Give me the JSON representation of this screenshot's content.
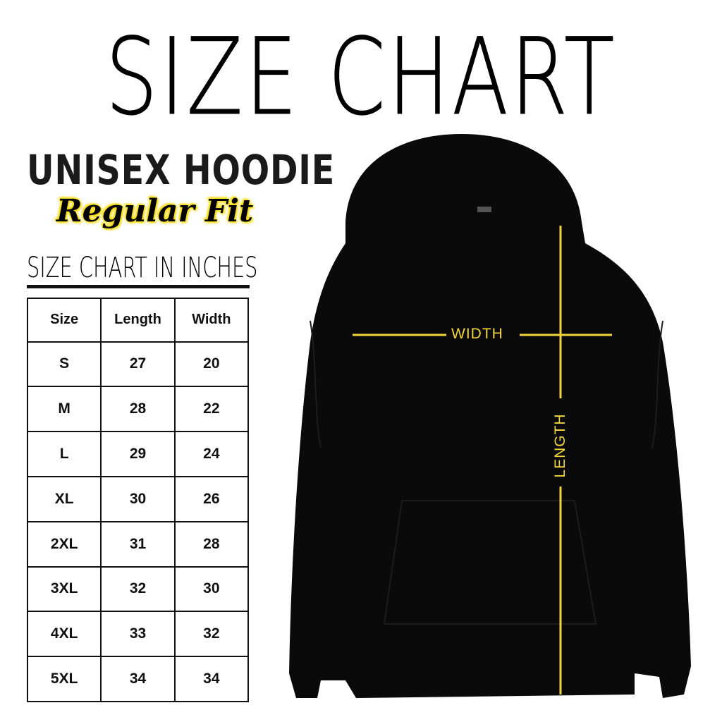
{
  "title": "SIZE CHART",
  "product": "UNISEX HOODIE",
  "fit": "Regular Fit",
  "unit_heading": "SIZE CHART IN INCHES",
  "table": {
    "headers": [
      "Size",
      "Length",
      "Width"
    ],
    "rows": [
      [
        "S",
        "27",
        "20"
      ],
      [
        "M",
        "28",
        "22"
      ],
      [
        "L",
        "29",
        "24"
      ],
      [
        "XL",
        "30",
        "26"
      ],
      [
        "2XL",
        "31",
        "28"
      ],
      [
        "3XL",
        "32",
        "30"
      ],
      [
        "4XL",
        "33",
        "32"
      ],
      [
        "5XL",
        "34",
        "34"
      ]
    ]
  },
  "diagram": {
    "width_label": "WIDTH",
    "length_label": "LENGTH",
    "line_color": "#f2d43d",
    "garment_color": "#0a0a0a"
  }
}
